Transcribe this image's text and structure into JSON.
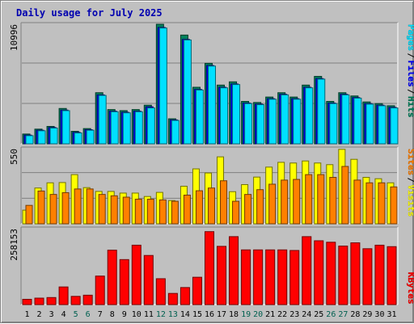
{
  "chart_data": {
    "type": "bar",
    "title": "Daily usage for July 2025",
    "categories": [
      "1",
      "2",
      "3",
      "4",
      "5",
      "6",
      "7",
      "8",
      "9",
      "10",
      "11",
      "12",
      "13",
      "14",
      "15",
      "16",
      "17",
      "18",
      "19",
      "20",
      "21",
      "22",
      "23",
      "24",
      "25",
      "26",
      "27",
      "28",
      "29",
      "30",
      "31"
    ],
    "weekend_days": [
      "5",
      "6",
      "12",
      "13",
      "19",
      "20",
      "26",
      "27"
    ],
    "panels": [
      {
        "id": "top",
        "max_label": "10996",
        "ymax": 10996,
        "series": [
          {
            "name": "Hits",
            "color": "#00805c",
            "values": [
              900,
              1350,
              1600,
              3250,
              1150,
              1400,
              4700,
              3150,
              3050,
              3150,
              3550,
              10996,
              2300,
              10000,
              5200,
              7400,
              5400,
              5700,
              3900,
              3800,
              4300,
              4700,
              4300,
              5400,
              6200,
              3900,
              4700,
              4400,
              3850,
              3700,
              3500
            ]
          },
          {
            "name": "Files",
            "color": "#0000ff",
            "values": [
              800,
              1250,
              1500,
              3100,
              1050,
              1300,
              4500,
              3000,
              2900,
              3000,
              3400,
              10700,
              2200,
              9600,
              5000,
              7200,
              5200,
              5500,
              3750,
              3650,
              4150,
              4550,
              4150,
              5200,
              6000,
              3750,
              4550,
              4250,
              3700,
              3550,
              3350
            ]
          },
          {
            "name": "Pages",
            "color": "#00e0ff",
            "values": [
              750,
              1200,
              1450,
              3050,
              1000,
              1250,
              4450,
              2950,
              2850,
              2950,
              3300,
              10650,
              2150,
              9550,
              4950,
              7150,
              5150,
              5450,
              3700,
              3600,
              4100,
              4500,
              4100,
              5150,
              5950,
              3700,
              4500,
              4200,
              3650,
              3500,
              3300
            ]
          }
        ]
      },
      {
        "id": "middle",
        "max_label": "550",
        "ymax": 550,
        "series": [
          {
            "name": "Visits",
            "color": "#ffff00",
            "values": [
              100,
              262,
              300,
              302,
              360,
              265,
              237,
              237,
              225,
              225,
              200,
              230,
              170,
              275,
              402,
              372,
              490,
              235,
              287,
              342,
              415,
              450,
              445,
              460,
              445,
              433,
              545,
              472,
              340,
              330,
              300
            ]
          },
          {
            "name": "Sites",
            "color": "#ff8000",
            "values": [
              135,
              240,
              215,
              228,
              255,
              255,
              215,
              205,
              195,
              180,
              180,
              175,
              165,
              210,
              242,
              262,
              315,
              165,
              215,
              250,
              290,
              320,
              325,
              360,
              360,
              340,
              420,
              320,
              300,
              300,
              270
            ]
          }
        ]
      },
      {
        "id": "bottom",
        "max_label": "258153",
        "ymax": 258153,
        "series": [
          {
            "name": "KBytes",
            "color": "#ff0000",
            "values": [
              18000,
              22000,
              24000,
              60000,
              28000,
              32000,
              97000,
              185000,
              153000,
              202000,
              167000,
              88000,
              38000,
              58000,
              93000,
              248000,
              198000,
              231000,
              186000,
              186000,
              186000,
              186000,
              184000,
              231000,
              217000,
              212000,
              199000,
              210000,
              190000,
              202000,
              197000
            ]
          }
        ]
      }
    ]
  }
}
